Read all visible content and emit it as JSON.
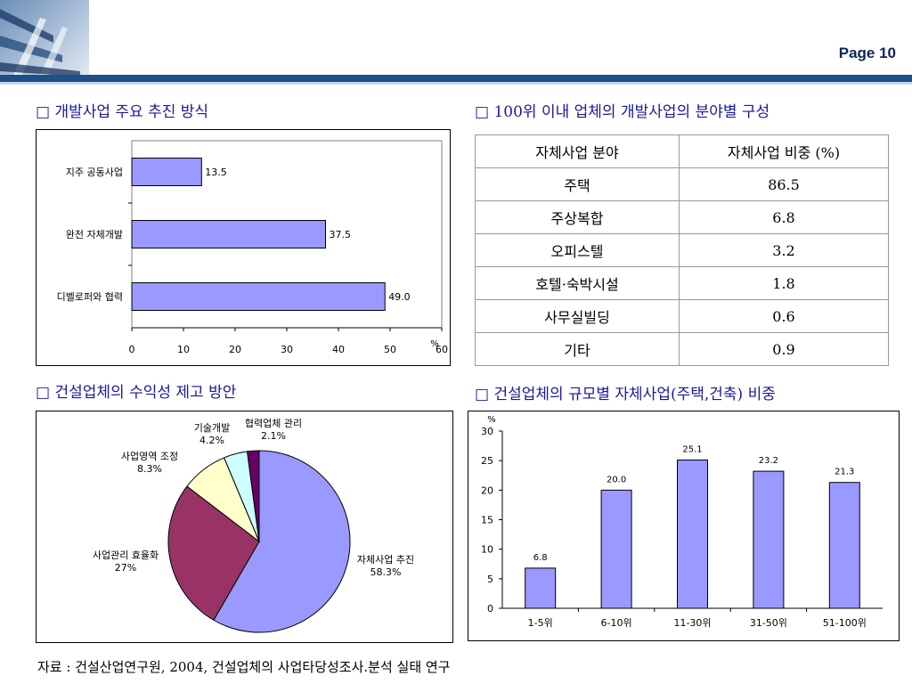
{
  "page": {
    "label": "Page 10"
  },
  "colors": {
    "header_bar": "#1e4f86",
    "bar_fill": "#9999ff",
    "title_text": "#1a1a9a"
  },
  "sections": {
    "s1": "□ 개발사업 주요 추진 방식",
    "s2": "□ 100위 이내 업체의 개발사업의 분야별 구성",
    "s3": "□ 건설업체의 수익성 제고 방안",
    "s4": "□ 건설업체의 규모별 자체사업(주택,건축) 비중"
  },
  "table": {
    "headers": [
      "자체사업 분야",
      "자체사업 비중 (%)"
    ],
    "rows": [
      [
        "주택",
        "86.5"
      ],
      [
        "주상복합",
        "6.8"
      ],
      [
        "오피스텔",
        "3.2"
      ],
      [
        "호텔·숙박시설",
        "1.8"
      ],
      [
        "사무실빌딩",
        "0.6"
      ],
      [
        "기타",
        "0.9"
      ]
    ]
  },
  "chart_data": [
    {
      "type": "bar",
      "orientation": "horizontal",
      "categories": [
        "지주 공동사업",
        "완전 자체개발",
        "디벨로퍼와 협력"
      ],
      "values": [
        13.5,
        37.5,
        49.0
      ],
      "value_labels": [
        "13.5",
        "37.5",
        "49.0"
      ],
      "xlim": [
        0,
        60
      ],
      "xticks": [
        "0",
        "10",
        "20",
        "30",
        "40",
        "50",
        "60"
      ],
      "unit": "%",
      "color": "#9999ff"
    },
    {
      "type": "pie",
      "slices": [
        {
          "label": "자체사업 추진",
          "value": 58.3,
          "pct_label": "58.3%",
          "color": "#9999ff"
        },
        {
          "label": "사업관리 효율화",
          "value": 27,
          "pct_label": "27%",
          "color": "#993366"
        },
        {
          "label": "사업영역 조정",
          "value": 8.3,
          "pct_label": "8.3%",
          "color": "#ffffcc"
        },
        {
          "label": "기술개발",
          "value": 4.2,
          "pct_label": "4.2%",
          "color": "#ccffff"
        },
        {
          "label": "협력업체 관리",
          "value": 2.1,
          "pct_label": "2.1%",
          "color": "#660066"
        }
      ]
    },
    {
      "type": "bar",
      "orientation": "vertical",
      "categories": [
        "1-5위",
        "6-10위",
        "11-30위",
        "31-50위",
        "51-100위"
      ],
      "values": [
        6.8,
        20.0,
        25.1,
        23.2,
        21.3
      ],
      "value_labels": [
        "6.8",
        "20.0",
        "25.1",
        "23.2",
        "21.3"
      ],
      "ylim": [
        0,
        30
      ],
      "yticks": [
        "0",
        "5",
        "10",
        "15",
        "20",
        "25",
        "30"
      ],
      "unit": "%",
      "color": "#9999ff"
    }
  ],
  "source": "자료 : 건설산업연구원, 2004, 건설업체의 사업타당성조사.분석 실태 연구"
}
